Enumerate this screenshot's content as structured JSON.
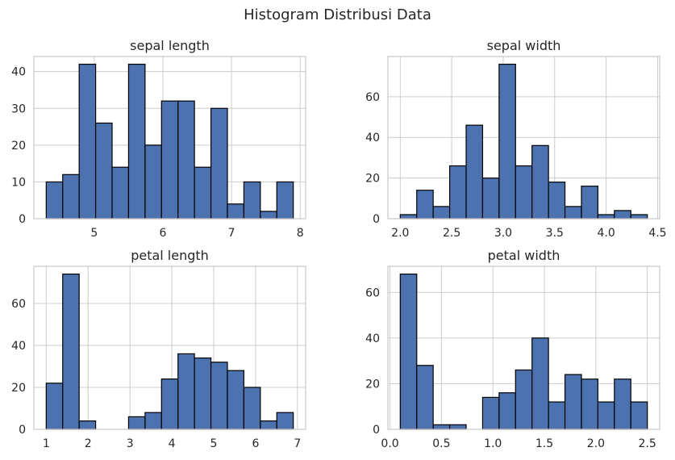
{
  "figure": {
    "title": "Histogram Distribusi Data"
  },
  "chart_data": [
    {
      "type": "bar",
      "subtype": "histogram",
      "title": "sepal length",
      "bin_edges": [
        4.3,
        4.54,
        4.78,
        5.02,
        5.26,
        5.5,
        5.74,
        5.98,
        6.22,
        6.46,
        6.7,
        6.94,
        7.18,
        7.42,
        7.66,
        7.9
      ],
      "values": [
        10,
        12,
        42,
        26,
        14,
        42,
        20,
        32,
        32,
        14,
        30,
        4,
        10,
        2,
        10
      ],
      "xlim": [
        4.12,
        8.08
      ],
      "ylim": [
        0,
        44.1
      ],
      "xticks": [
        5,
        6,
        7,
        8
      ],
      "xtick_labels": [
        "5",
        "6",
        "7",
        "8"
      ],
      "yticks": [
        0,
        10,
        20,
        30,
        40
      ],
      "ytick_labels": [
        "0",
        "10",
        "20",
        "30",
        "40"
      ],
      "grid": true
    },
    {
      "type": "bar",
      "subtype": "histogram",
      "title": "sepal width",
      "bin_edges": [
        2.0,
        2.16,
        2.32,
        2.48,
        2.64,
        2.8,
        2.96,
        3.12,
        3.28,
        3.44,
        3.6,
        3.76,
        3.92,
        4.08,
        4.24,
        4.4
      ],
      "values": [
        2,
        14,
        6,
        26,
        46,
        20,
        76,
        26,
        36,
        18,
        6,
        16,
        2,
        4,
        2
      ],
      "xlim": [
        1.88,
        4.52
      ],
      "ylim": [
        0,
        79.8
      ],
      "xticks": [
        2.0,
        2.5,
        3.0,
        3.5,
        4.0,
        4.5
      ],
      "xtick_labels": [
        "2.0",
        "2.5",
        "3.0",
        "3.5",
        "4.0",
        "4.5"
      ],
      "yticks": [
        0,
        20,
        40,
        60
      ],
      "ytick_labels": [
        "0",
        "20",
        "40",
        "60"
      ],
      "grid": true
    },
    {
      "type": "bar",
      "subtype": "histogram",
      "title": "petal length",
      "bin_edges": [
        1.0,
        1.3933,
        1.7867,
        2.18,
        2.5733,
        2.9667,
        3.36,
        3.7533,
        4.1467,
        4.54,
        4.9333,
        5.3267,
        5.72,
        6.1133,
        6.5067,
        6.9
      ],
      "values": [
        22,
        74,
        4,
        0,
        0,
        6,
        8,
        24,
        36,
        34,
        32,
        28,
        20,
        4,
        8
      ],
      "xlim": [
        0.705,
        7.195
      ],
      "ylim": [
        0,
        77.7
      ],
      "xticks": [
        1,
        2,
        3,
        4,
        5,
        6,
        7
      ],
      "xtick_labels": [
        "1",
        "2",
        "3",
        "4",
        "5",
        "6",
        "7"
      ],
      "yticks": [
        0,
        20,
        40,
        60
      ],
      "ytick_labels": [
        "0",
        "20",
        "40",
        "60"
      ],
      "grid": true
    },
    {
      "type": "bar",
      "subtype": "histogram",
      "title": "petal width",
      "bin_edges": [
        0.1,
        0.26,
        0.42,
        0.58,
        0.74,
        0.9,
        1.06,
        1.22,
        1.38,
        1.54,
        1.7,
        1.86,
        2.02,
        2.18,
        2.34,
        2.5
      ],
      "values": [
        68,
        28,
        2,
        2,
        0,
        14,
        16,
        26,
        40,
        12,
        24,
        22,
        12,
        22,
        12
      ],
      "xlim": [
        -0.02,
        2.62
      ],
      "ylim": [
        0,
        71.4
      ],
      "xticks": [
        0.0,
        0.5,
        1.0,
        1.5,
        2.0,
        2.5
      ],
      "xtick_labels": [
        "0.0",
        "0.5",
        "1.0",
        "1.5",
        "2.0",
        "2.5"
      ],
      "yticks": [
        0,
        20,
        40,
        60
      ],
      "ytick_labels": [
        "0",
        "20",
        "40",
        "60"
      ],
      "grid": true
    }
  ]
}
